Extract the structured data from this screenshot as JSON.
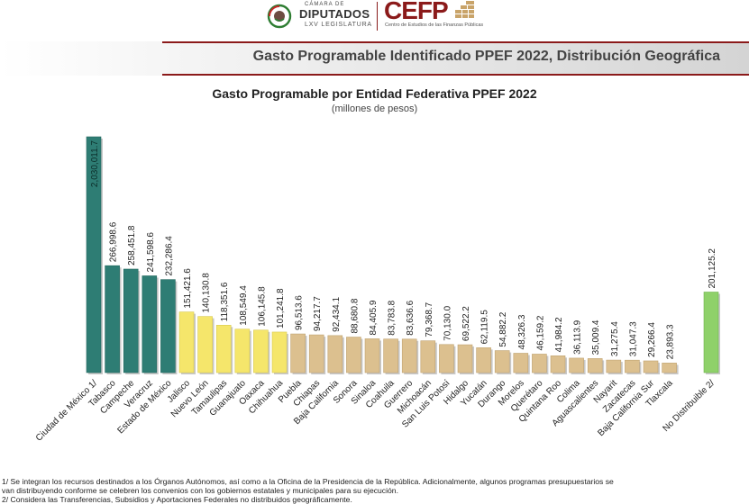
{
  "header": {
    "camara_label": "CÁMARA DE",
    "diputados_label": "DIPUTADOS",
    "legislatura_label": "LXV LEGISLATURA",
    "cefp_label": "CEFP",
    "cefp_subtitle": "Centro de Estudios de las Finanzas Públicas"
  },
  "banner": {
    "title": "Gasto Programable Identificado PPEF 2022, Distribución Geográfica"
  },
  "colors": {
    "teal": "#2e7d74",
    "yellow": "#f5e66b",
    "tan": "#dcc08f",
    "green": "#8fd16a",
    "banner_gradient_start": "#ffffff",
    "banner_gradient_end": "#d7d7d7",
    "brand_red": "#8b1a1a"
  },
  "chart_data": {
    "type": "bar",
    "title": "Gasto Programable por Entidad Federativa PPEF 2022",
    "subtitle": "(millones de pesos)",
    "categories": [
      "Ciudad de México 1/",
      "Tabasco",
      "Campeche",
      "Veracruz",
      "Estado de México",
      "Jalisco",
      "Nuevo León",
      "Tamaulipas",
      "Guanajuato",
      "Oaxaca",
      "Chihuahua",
      "Puebla",
      "Chiapas",
      "Baja California",
      "Sonora",
      "Sinaloa",
      "Coahuila",
      "Guerrero",
      "Michoacán",
      "San Luis Potosí",
      "Hidalgo",
      "Yucatán",
      "Durango",
      "Morelos",
      "Querétaro",
      "Quintana Roo",
      "Colima",
      "Aguascalientes",
      "Nayarit",
      "Zacatecas",
      "Baja California Sur",
      "Tlaxcala",
      "No Distribuible 2/"
    ],
    "values": [
      2030011.7,
      266998.6,
      258451.8,
      241598.6,
      232286.4,
      151421.6,
      140130.8,
      118351.6,
      108549.4,
      106145.8,
      101241.8,
      96513.6,
      94217.7,
      92434.1,
      88680.8,
      84405.9,
      83783.8,
      83636.6,
      79368.7,
      70130.0,
      69522.2,
      62119.5,
      54882.2,
      48326.3,
      46159.2,
      41984.2,
      36113.9,
      35009.4,
      31275.4,
      31047.3,
      29266.4,
      23893.3,
      201125.2
    ],
    "labels": [
      "2,030,011.7",
      "266,998.6",
      "258,451.8",
      "241,598.6",
      "232,286.4",
      "151,421.6",
      "140,130.8",
      "118,351.6",
      "108,549.4",
      "106,145.8",
      "101,241.8",
      "96,513.6",
      "94,217.7",
      "92,434.1",
      "88,680.8",
      "84,405.9",
      "83,783.8",
      "83,636.6",
      "79,368.7",
      "70,130.0",
      "69,522.2",
      "62,119.5",
      "54,882.2",
      "48,326.3",
      "46,159.2",
      "41,984.2",
      "36,113.9",
      "35,009.4",
      "31,275.4",
      "31,047.3",
      "29,266.4",
      "23,893.3",
      "201,125.2"
    ],
    "groups": [
      "teal",
      "teal",
      "teal",
      "teal",
      "teal",
      "yellow",
      "yellow",
      "yellow",
      "yellow",
      "yellow",
      "yellow",
      "tan",
      "tan",
      "tan",
      "tan",
      "tan",
      "tan",
      "tan",
      "tan",
      "tan",
      "tan",
      "tan",
      "tan",
      "tan",
      "tan",
      "tan",
      "tan",
      "tan",
      "tan",
      "tan",
      "tan",
      "tan",
      "green"
    ],
    "axis_break": "first bar truncated",
    "grid": false
  },
  "footnotes": {
    "note1_line1": "1/ Se integran los recursos destinados a los Órganos Autónomos, así como a la Oficina de la Presidencia de la República. Adicionalmente, algunos programas presupuestarios se",
    "note1_line2": "van distribuyendo conforme se celebren los convenios con los gobiernos estatales y municipales para su ejecución.",
    "note2": "2/  Considera las Transferencias, Subsidios y Aportaciones Federales no distribuidos geográficamente."
  }
}
